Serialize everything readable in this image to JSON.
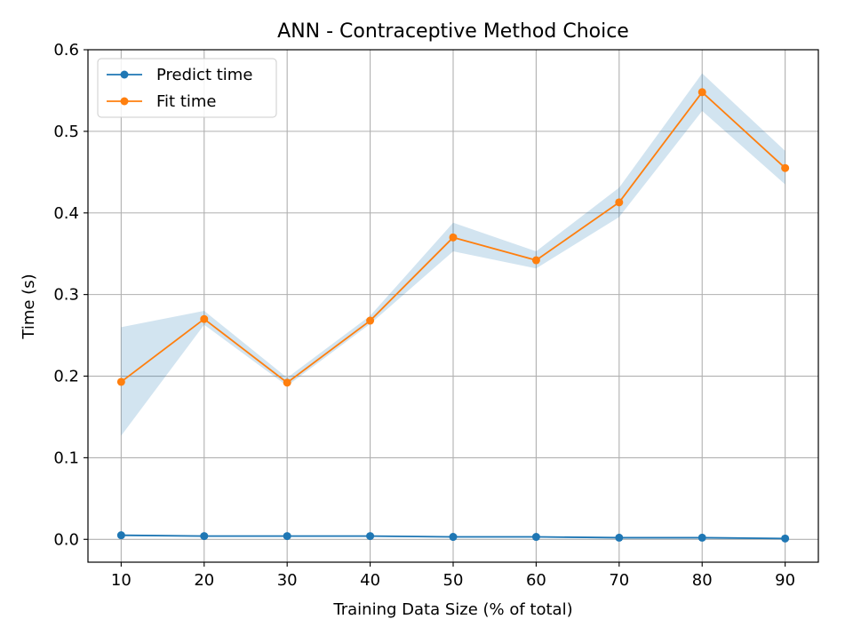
{
  "chart_data": {
    "type": "line",
    "title": "ANN - Contraceptive Method Choice",
    "xlabel": "Training Data Size (% of total)",
    "ylabel": "Time (s)",
    "x": [
      10,
      20,
      30,
      40,
      50,
      60,
      70,
      80,
      90
    ],
    "xlim": [
      6,
      94
    ],
    "ylim": [
      -0.028,
      0.6
    ],
    "xticks": [
      "10",
      "20",
      "30",
      "40",
      "50",
      "60",
      "70",
      "80",
      "90"
    ],
    "yticks": [
      "0.0",
      "0.1",
      "0.2",
      "0.3",
      "0.4",
      "0.5",
      "0.6"
    ],
    "grid": true,
    "legend_position": "upper-left",
    "series": [
      {
        "name": "Predict time",
        "color": "#1f77b4",
        "values": [
          0.005,
          0.004,
          0.004,
          0.004,
          0.003,
          0.003,
          0.002,
          0.002,
          0.001
        ],
        "band_lower": [
          0.004,
          0.003,
          0.003,
          0.003,
          0.002,
          0.002,
          0.001,
          0.001,
          0.0
        ],
        "band_upper": [
          0.006,
          0.005,
          0.005,
          0.005,
          0.004,
          0.004,
          0.003,
          0.003,
          0.002
        ]
      },
      {
        "name": "Fit time",
        "color": "#ff7f0e",
        "values": [
          0.193,
          0.27,
          0.192,
          0.268,
          0.37,
          0.342,
          0.413,
          0.548,
          0.455
        ],
        "band_lower": [
          0.127,
          0.263,
          0.188,
          0.264,
          0.353,
          0.332,
          0.395,
          0.525,
          0.435
        ],
        "band_upper": [
          0.26,
          0.28,
          0.198,
          0.274,
          0.388,
          0.353,
          0.431,
          0.571,
          0.476
        ]
      }
    ],
    "band_color": "#1f77b4"
  }
}
